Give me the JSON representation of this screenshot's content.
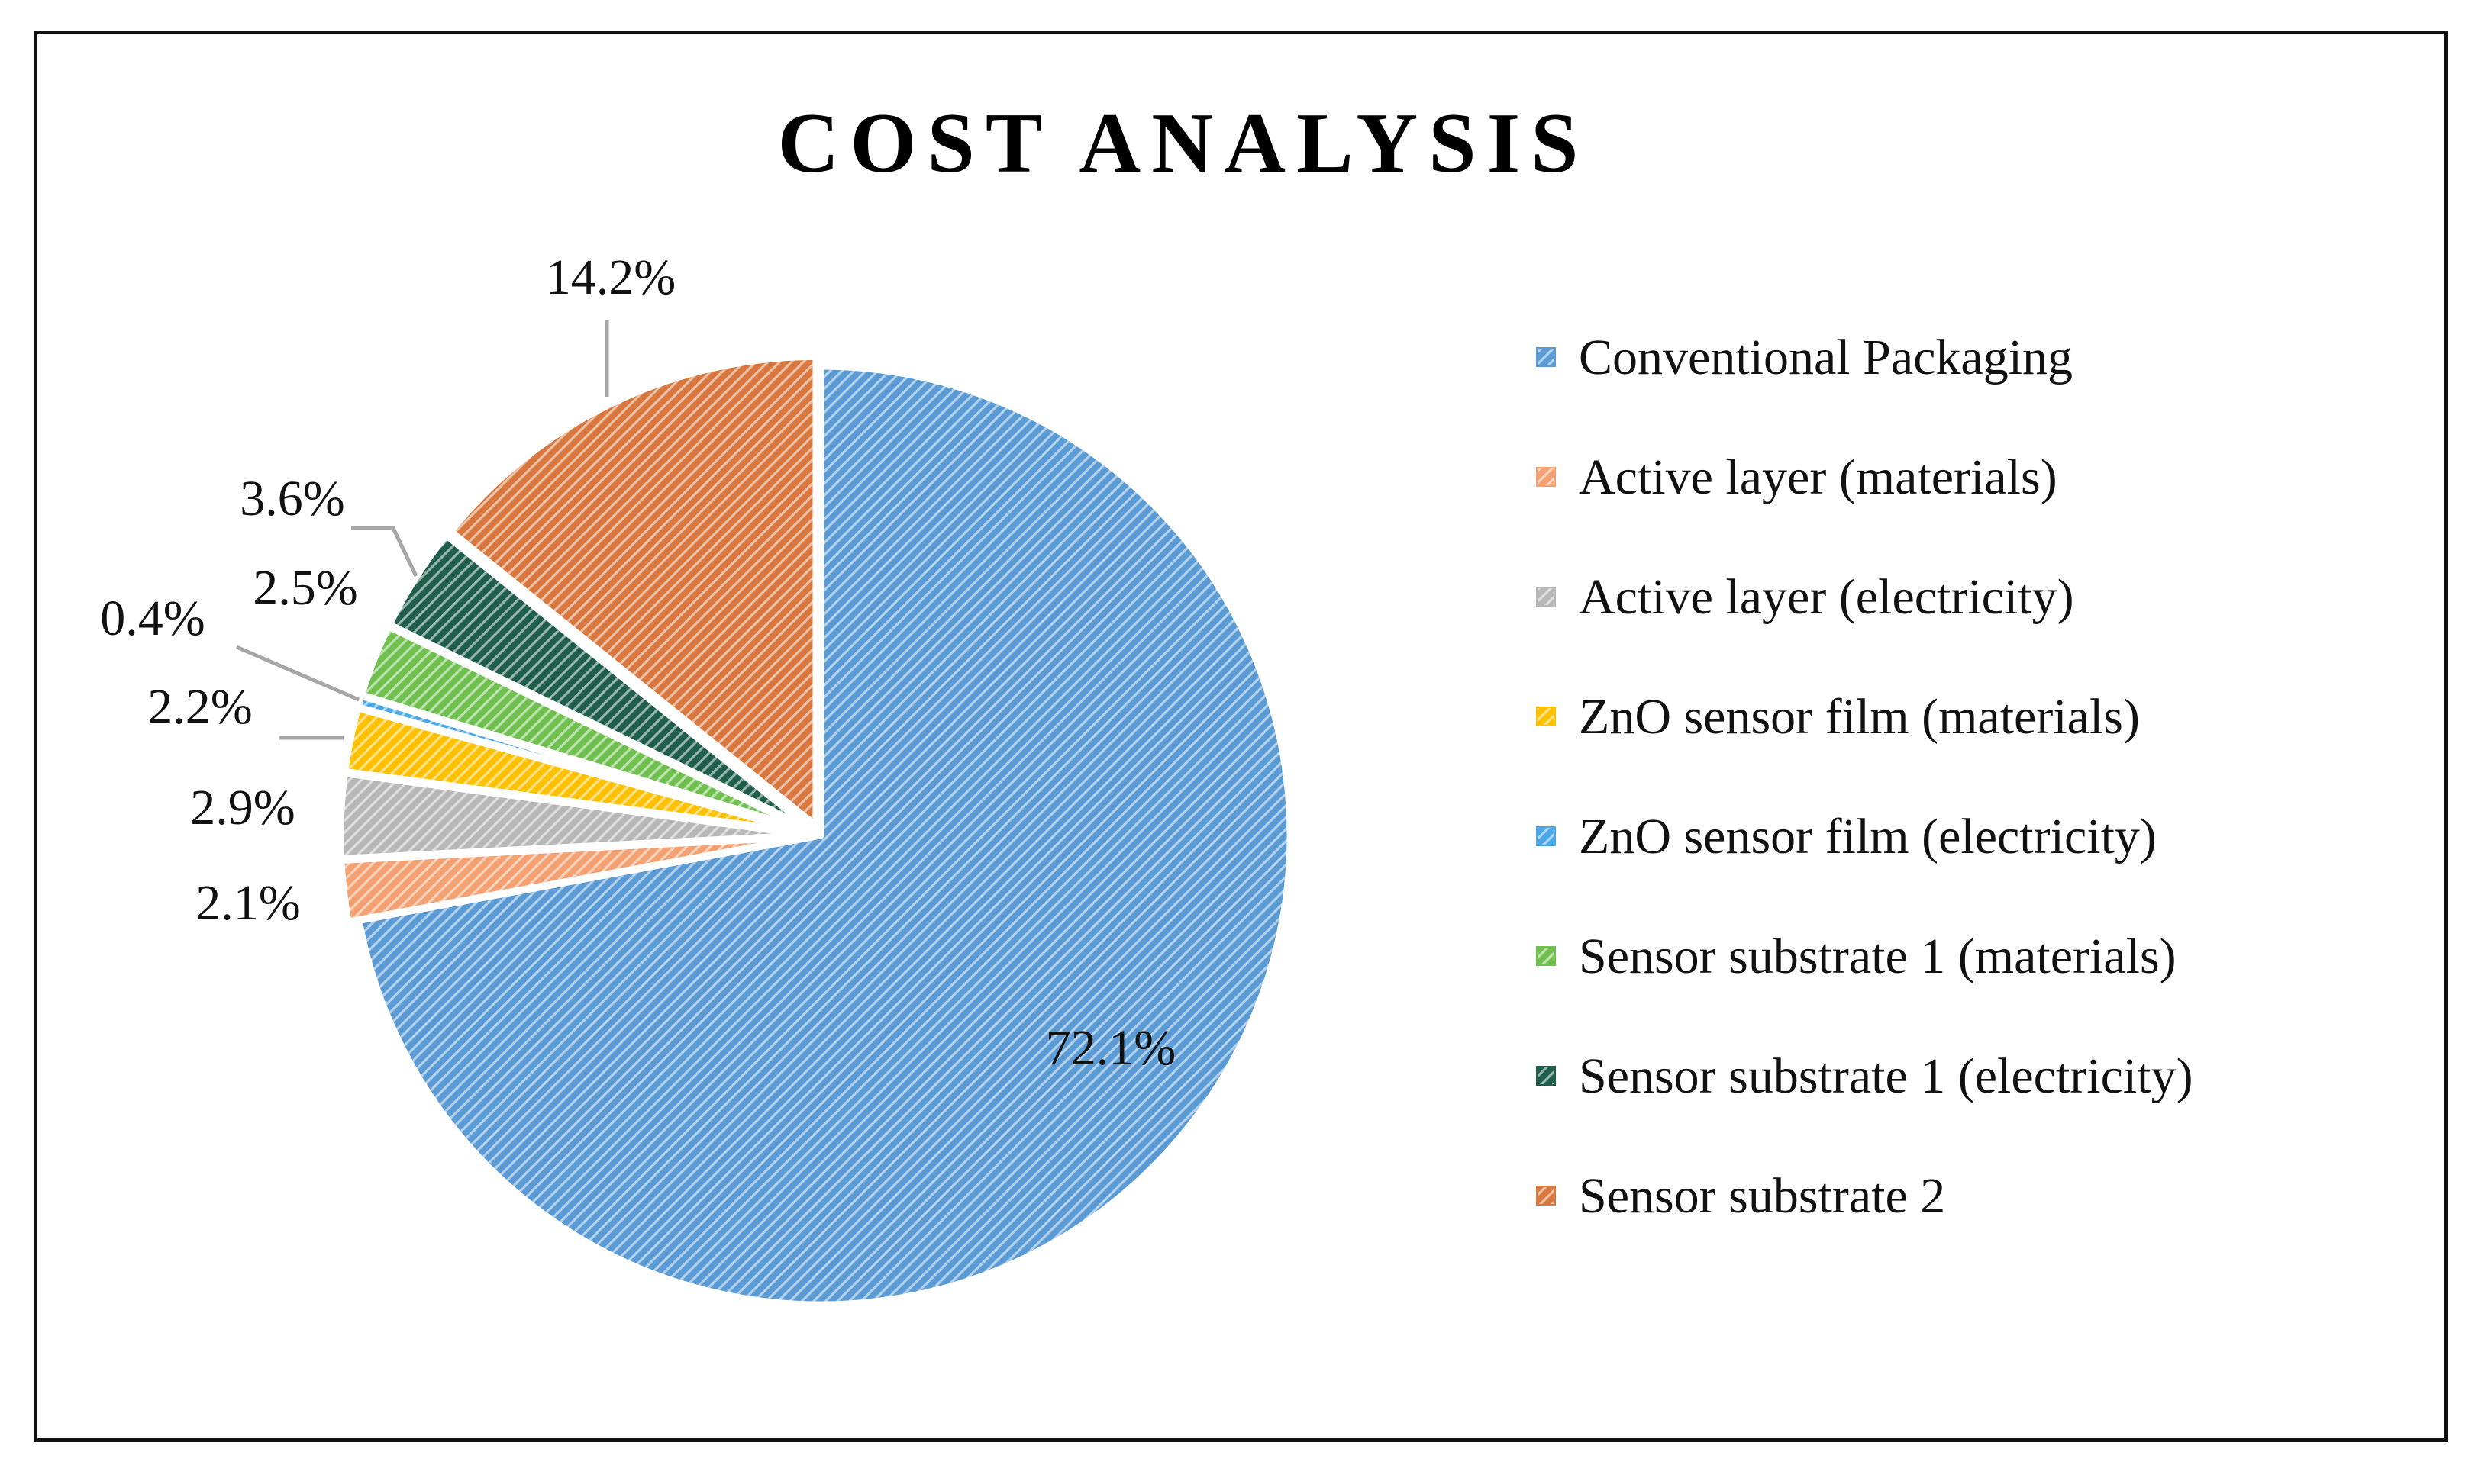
{
  "chart_data": {
    "type": "pie",
    "title": "COST ANALYSIS",
    "categories": [
      "Conventional Packaging",
      "Active layer (materials)",
      "Active layer (electricity)",
      "ZnO sensor film (materials)",
      "ZnO sensor film (electricity)",
      "Sensor substrate 1 (materials)",
      "Sensor substrate 1 (electricity)",
      "Sensor substrate 2"
    ],
    "values": [
      72.1,
      2.1,
      2.9,
      2.2,
      0.4,
      2.5,
      3.6,
      14.2
    ],
    "labels": [
      "72.1%",
      "2.1%",
      "2.9%",
      "2.2%",
      "0.4%",
      "2.5%",
      "3.6%",
      "14.2%"
    ],
    "colors": [
      "#5b9bd5",
      "#f4a070",
      "#b7b7b7",
      "#ffc000",
      "#4aa8e8",
      "#70c050",
      "#1e5e4a",
      "#d8773e"
    ],
    "legend_position": "right",
    "start_angle": "12 o'clock, clockwise"
  }
}
